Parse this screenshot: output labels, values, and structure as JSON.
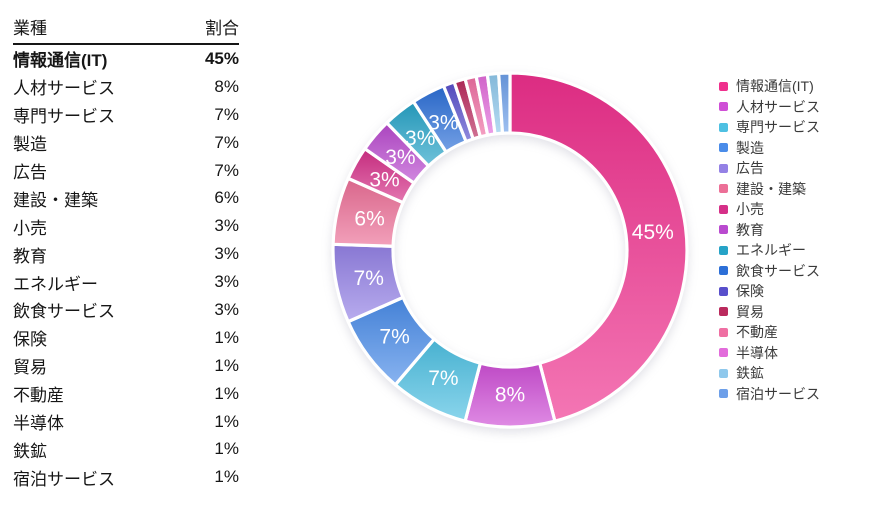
{
  "table_header": {
    "industry": "業種",
    "share": "割合"
  },
  "chart_data": {
    "type": "pie",
    "subtype": "donut",
    "title": "",
    "unit": "%",
    "legend_position": "right",
    "start_angle_deg": 0,
    "direction": "clockwise",
    "inner_radius_ratio": 0.66,
    "label_min_pct": 3,
    "label_color": "#ffffff",
    "separator_color": "#ffffff",
    "items": [
      {
        "label": "情報通信(IT)",
        "value": 45,
        "display": "45%",
        "color": "#EF308D"
      },
      {
        "label": "人材サービス",
        "value": 8,
        "display": "8%",
        "color": "#CF4FD6"
      },
      {
        "label": "専門サービス",
        "value": 7,
        "display": "7%",
        "color": "#4EC0E2"
      },
      {
        "label": "製造",
        "value": 7,
        "display": "7%",
        "color": "#4A8CE9"
      },
      {
        "label": "広告",
        "value": 7,
        "display": "7%",
        "color": "#9481E5"
      },
      {
        "label": "建設・建築",
        "value": 6,
        "display": "6%",
        "color": "#EC6F97"
      },
      {
        "label": "小売",
        "value": 3,
        "display": "3%",
        "color": "#D52F88"
      },
      {
        "label": "教育",
        "value": 3,
        "display": "3%",
        "color": "#B94ACF"
      },
      {
        "label": "エネルギー",
        "value": 3,
        "display": "3%",
        "color": "#26A3C7"
      },
      {
        "label": "飲食サービス",
        "value": 3,
        "display": "3%",
        "color": "#2C6FD7"
      },
      {
        "label": "保険",
        "value": 1,
        "display": "1%",
        "color": "#584FCB"
      },
      {
        "label": "貿易",
        "value": 1,
        "display": "1%",
        "color": "#BA2A5D"
      },
      {
        "label": "不動産",
        "value": 1,
        "display": "1%",
        "color": "#EF6FA3"
      },
      {
        "label": "半導体",
        "value": 1,
        "display": "1%",
        "color": "#E26CDB"
      },
      {
        "label": "鉄鉱",
        "value": 1,
        "display": "1%",
        "color": "#8FC8EC"
      },
      {
        "label": "宿泊サービス",
        "value": 1,
        "display": "1%",
        "color": "#6D9FE9"
      }
    ]
  }
}
